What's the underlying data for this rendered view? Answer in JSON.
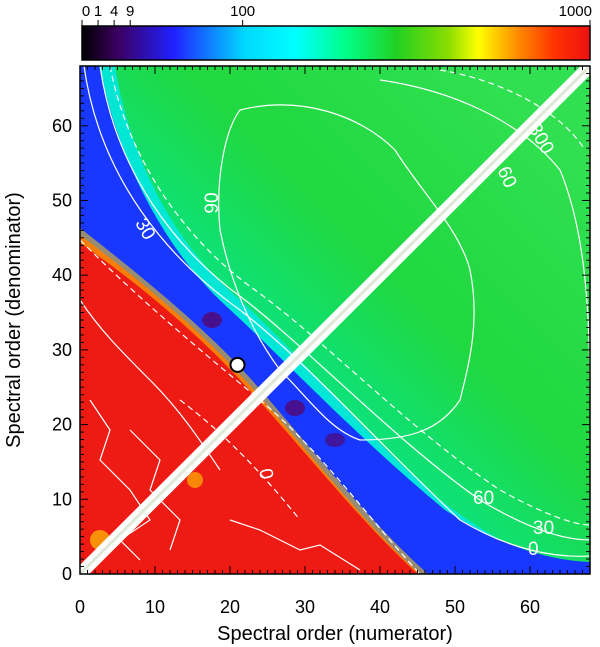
{
  "chart_data": {
    "type": "heatmap",
    "title": "",
    "xlabel": "Spectral order (numerator)",
    "ylabel": "Spectral order (denominator)",
    "xlim": [
      0,
      68
    ],
    "ylim": [
      0,
      68
    ],
    "xticks": [
      0,
      10,
      20,
      30,
      40,
      50,
      60
    ],
    "yticks": [
      0,
      10,
      20,
      30,
      40,
      50,
      60
    ],
    "colorbar": {
      "scale": "sqrt",
      "range": [
        0,
        1000
      ],
      "ticks": [
        0,
        1,
        4,
        9,
        100,
        1000
      ],
      "tick_labels": [
        "0",
        "1",
        "4",
        "9",
        "100",
        "1000"
      ],
      "colormap": [
        "#000000",
        "#3b0060",
        "#2020ff",
        "#00ffff",
        "#00ff66",
        "#22d022",
        "#ffff00",
        "#ff3300",
        "#ee1111"
      ]
    },
    "regions": [
      {
        "area": "upper-right triangle (numerator > denominator), far from diagonal",
        "approx_value": 100,
        "color": "#22d022"
      },
      {
        "area": "lower-left triangle below anti-diagonal n+m≈45",
        "approx_value": 1000,
        "color": "#ee1111"
      },
      {
        "area": "band along anti-diagonal",
        "approx_value": 9,
        "color": "#2020ff"
      },
      {
        "area": "main diagonal n=m",
        "approx_value": null,
        "color": "#ffffff"
      }
    ],
    "contour_labels": [
      "300",
      "60",
      "90",
      "30",
      "0",
      "60",
      "30",
      "0"
    ],
    "marker": {
      "x": 21,
      "y": 28,
      "label": ""
    }
  }
}
